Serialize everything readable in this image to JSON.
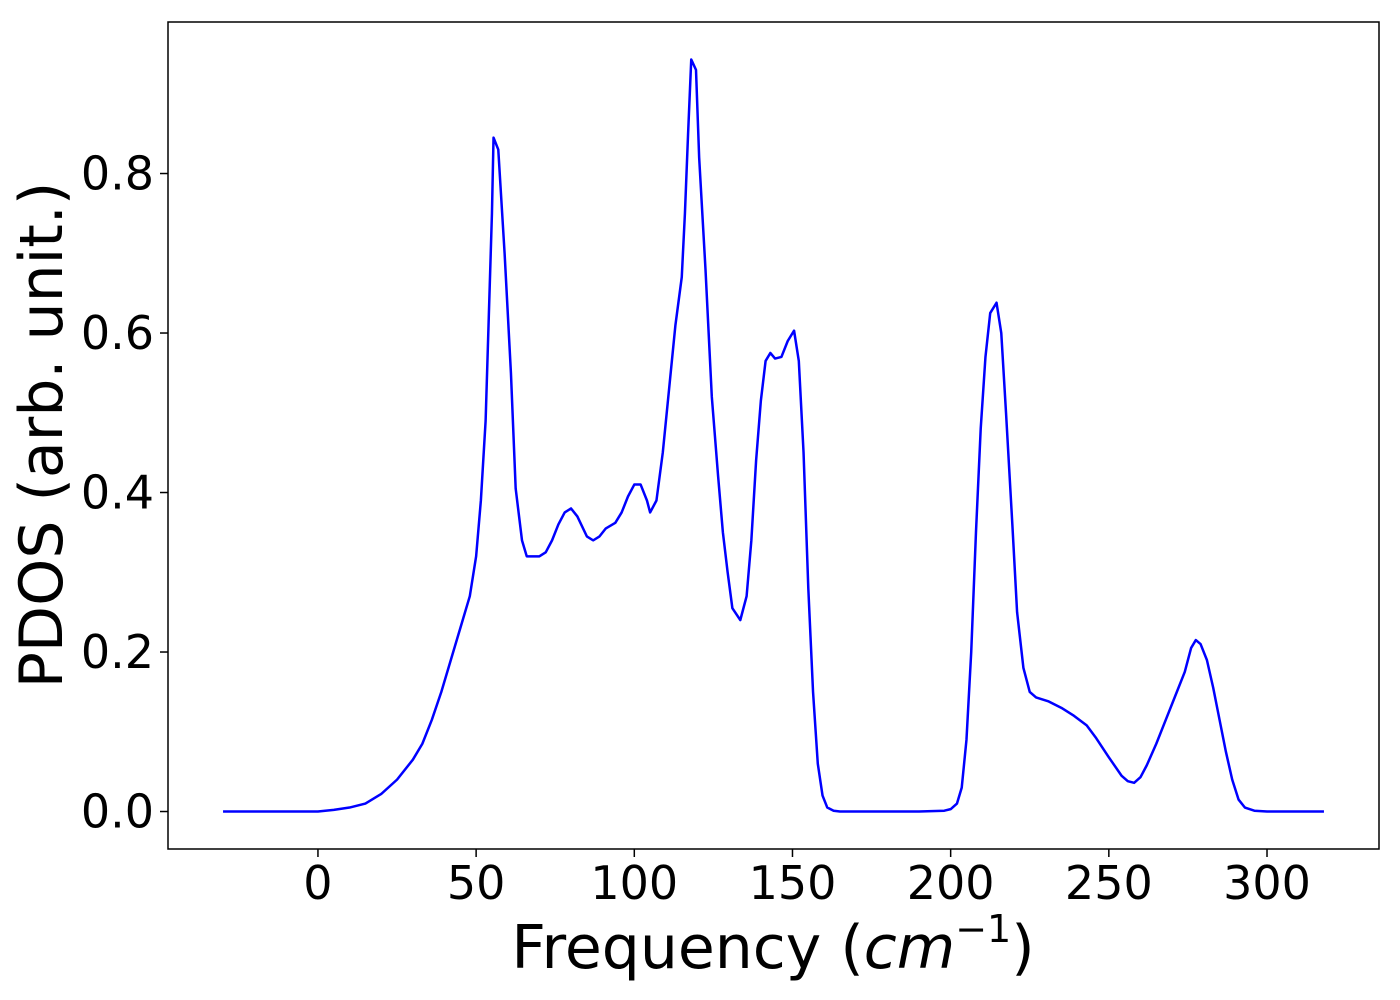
{
  "chart_data": {
    "type": "line",
    "x_label": {
      "text": "Frequency (",
      "unit": "cm",
      "exponent": "−1",
      "close": ")"
    },
    "y_label": "PDOS (arb. unit.)",
    "x": [
      -30,
      -20,
      -10,
      0,
      5,
      10,
      15,
      20,
      25,
      30,
      33,
      36,
      39,
      42,
      45,
      48,
      50,
      51.5,
      53,
      54,
      55,
      55.5,
      57,
      59,
      61,
      62.5,
      64.5,
      66,
      70,
      72,
      74,
      76,
      78,
      80,
      82,
      85,
      87,
      89,
      91,
      94,
      96,
      98,
      100,
      102,
      104,
      105,
      107,
      109,
      111,
      113,
      115,
      116,
      117,
      118,
      119.5,
      120.5,
      122.5,
      124.5,
      126.5,
      128,
      129.5,
      131,
      133.5,
      135.5,
      137,
      138.5,
      140,
      141.5,
      143,
      144.5,
      146.5,
      148.5,
      150.5,
      152,
      153.5,
      155,
      156.5,
      158,
      159.5,
      161,
      163,
      165,
      170,
      180,
      190,
      198,
      200,
      202,
      203.5,
      205,
      206.5,
      208,
      209.5,
      211,
      212.5,
      214.5,
      216,
      217.5,
      219.5,
      221,
      223,
      225,
      227,
      231,
      235,
      239,
      243,
      246,
      250,
      254,
      256,
      258,
      260,
      262,
      265,
      268,
      271,
      274,
      276,
      277.5,
      279,
      281,
      283,
      285,
      287,
      289,
      291,
      293,
      296,
      300,
      310,
      318
    ],
    "series": [
      {
        "name": "PDOS",
        "color": "#0000ff",
        "values": [
          0,
          0,
          0,
          0,
          0.002,
          0.005,
          0.01,
          0.022,
          0.04,
          0.065,
          0.085,
          0.115,
          0.15,
          0.19,
          0.23,
          0.27,
          0.32,
          0.39,
          0.49,
          0.62,
          0.75,
          0.845,
          0.83,
          0.7,
          0.55,
          0.405,
          0.34,
          0.32,
          0.32,
          0.325,
          0.34,
          0.36,
          0.375,
          0.38,
          0.37,
          0.345,
          0.34,
          0.345,
          0.355,
          0.362,
          0.375,
          0.395,
          0.41,
          0.41,
          0.39,
          0.375,
          0.39,
          0.45,
          0.53,
          0.61,
          0.67,
          0.75,
          0.85,
          0.943,
          0.93,
          0.82,
          0.68,
          0.52,
          0.42,
          0.35,
          0.3,
          0.255,
          0.24,
          0.27,
          0.34,
          0.44,
          0.515,
          0.565,
          0.575,
          0.568,
          0.57,
          0.59,
          0.603,
          0.565,
          0.45,
          0.28,
          0.15,
          0.06,
          0.02,
          0.005,
          0.001,
          0,
          0,
          0,
          0,
          0.001,
          0.003,
          0.01,
          0.03,
          0.09,
          0.2,
          0.35,
          0.48,
          0.57,
          0.625,
          0.638,
          0.6,
          0.5,
          0.36,
          0.25,
          0.18,
          0.15,
          0.143,
          0.138,
          0.13,
          0.12,
          0.108,
          0.092,
          0.068,
          0.045,
          0.038,
          0.036,
          0.043,
          0.058,
          0.085,
          0.115,
          0.145,
          0.175,
          0.205,
          0.215,
          0.21,
          0.19,
          0.155,
          0.115,
          0.075,
          0.04,
          0.015,
          0.005,
          0.001,
          0,
          0,
          0
        ]
      }
    ],
    "xlim": [
      -47.4,
      335.4
    ],
    "ylim": [
      -0.047,
      0.99
    ],
    "xticks": [
      0,
      50,
      100,
      150,
      200,
      250,
      300
    ],
    "yticks": [
      {
        "value": 0,
        "label": "0.0"
      },
      0.2,
      0.4,
      0.6,
      0.8
    ],
    "grid": false
  }
}
